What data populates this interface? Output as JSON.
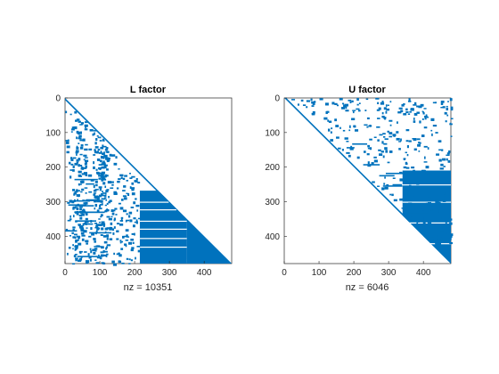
{
  "chart_data": [
    {
      "type": "spy",
      "title": "L factor",
      "xlabel": "nz = 10351",
      "nz": 10351,
      "n": 479,
      "structure": "lower-triangular",
      "xlim": [
        0,
        479
      ],
      "ylim": [
        0,
        479
      ],
      "y_reversed": true,
      "xticks": [
        0,
        100,
        200,
        300,
        400
      ],
      "yticks": [
        0,
        100,
        200,
        300,
        400
      ],
      "grid": false,
      "marker_color": "#0072BD",
      "dense_regions": [
        {
          "rows": [
            268,
            479
          ],
          "cols": [
            215,
            350
          ]
        },
        {
          "rows": [
            350,
            479
          ],
          "cols": [
            350,
            479
          ]
        }
      ]
    },
    {
      "type": "spy",
      "title": "U factor",
      "xlabel": "nz = 6046",
      "nz": 6046,
      "n": 479,
      "structure": "upper-triangular",
      "xlim": [
        0,
        479
      ],
      "ylim": [
        0,
        479
      ],
      "y_reversed": true,
      "xticks": [
        0,
        100,
        200,
        300,
        400
      ],
      "yticks": [
        0,
        100,
        200,
        300,
        400
      ],
      "grid": false,
      "marker_color": "#0072BD",
      "dense_regions": [
        {
          "rows": [
            210,
            479
          ],
          "cols": [
            340,
            479
          ]
        },
        {
          "rows": [
            320,
            479
          ],
          "cols": [
            400,
            479
          ]
        }
      ]
    }
  ]
}
